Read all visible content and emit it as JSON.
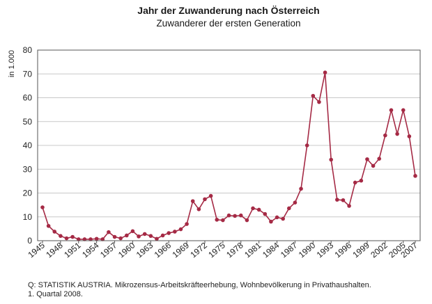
{
  "chart_data": {
    "type": "line",
    "title": "Jahr der Zuwanderung nach Österreich",
    "subtitle": "Zuwanderer der ersten Generation",
    "ylabel": "in 1.000",
    "ylim": [
      0,
      80
    ],
    "yticks": [
      0,
      10,
      20,
      30,
      40,
      50,
      60,
      70,
      80
    ],
    "xlim": [
      1945,
      2007
    ],
    "xticks": [
      1945,
      1948,
      1951,
      1954,
      1957,
      1960,
      1963,
      1966,
      1969,
      1972,
      1975,
      1978,
      1981,
      1984,
      1987,
      1990,
      1993,
      1996,
      1999,
      2002,
      2005,
      2007
    ],
    "grid": true,
    "series": [
      {
        "color": "#a52a45",
        "x": [
          1945,
          1946,
          1947,
          1948,
          1949,
          1950,
          1951,
          1952,
          1953,
          1954,
          1955,
          1956,
          1957,
          1958,
          1959,
          1960,
          1961,
          1962,
          1963,
          1964,
          1965,
          1966,
          1967,
          1968,
          1969,
          1970,
          1971,
          1972,
          1973,
          1974,
          1975,
          1976,
          1977,
          1978,
          1979,
          1980,
          1981,
          1982,
          1983,
          1984,
          1985,
          1986,
          1987,
          1988,
          1989,
          1990,
          1991,
          1992,
          1993,
          1994,
          1995,
          1996,
          1997,
          1998,
          1999,
          2000,
          2001,
          2002,
          2003,
          2004,
          2005,
          2006,
          2007
        ],
        "y": [
          14,
          6.2,
          3.8,
          2.0,
          1.0,
          1.6,
          0.6,
          0.6,
          0.6,
          0.8,
          0.6,
          3.6,
          1.6,
          1.0,
          2.2,
          4.0,
          1.8,
          2.8,
          2.0,
          0.8,
          2.2,
          3.2,
          3.8,
          4.8,
          7.0,
          16.6,
          13.2,
          17.4,
          18.8,
          8.8,
          8.6,
          10.6,
          10.4,
          10.6,
          8.6,
          13.6,
          13.0,
          11.2,
          8.0,
          9.8,
          9.2,
          13.6,
          16.0,
          21.8,
          40.0,
          60.8,
          58.2,
          70.6,
          34.0,
          17.2,
          17.0,
          14.6,
          24.4,
          25.2,
          34.2,
          31.4,
          34.4,
          44.2,
          54.8,
          44.8,
          54.8,
          43.8,
          27.2
        ]
      }
    ]
  },
  "source": {
    "line1": "Q: STATISTIK AUSTRIA. Mikrozensus-Arbeitskräfteerhebung, Wohnbevölkerung in Privathaushalten.",
    "line2": "1. Quartal 2008."
  }
}
